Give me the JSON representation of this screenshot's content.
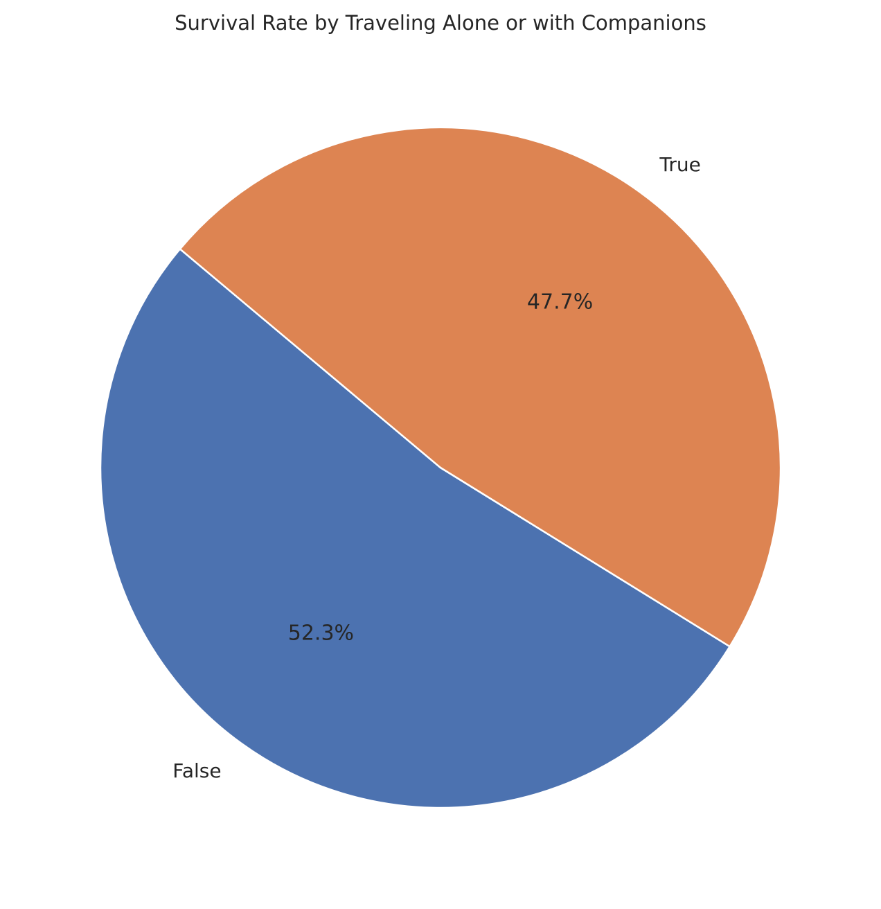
{
  "chart_data": {
    "type": "pie",
    "title": "Survival Rate by Traveling Alone or with Companions",
    "slices": [
      {
        "label": "False",
        "value": 52.3,
        "pct_label": "52.3%",
        "color": "#4c72b0"
      },
      {
        "label": "True",
        "value": 47.7,
        "pct_label": "47.7%",
        "color": "#dd8452"
      }
    ],
    "start_angle_deg": 140,
    "direction": "counterclockwise",
    "edge_color": "#ffffff"
  }
}
